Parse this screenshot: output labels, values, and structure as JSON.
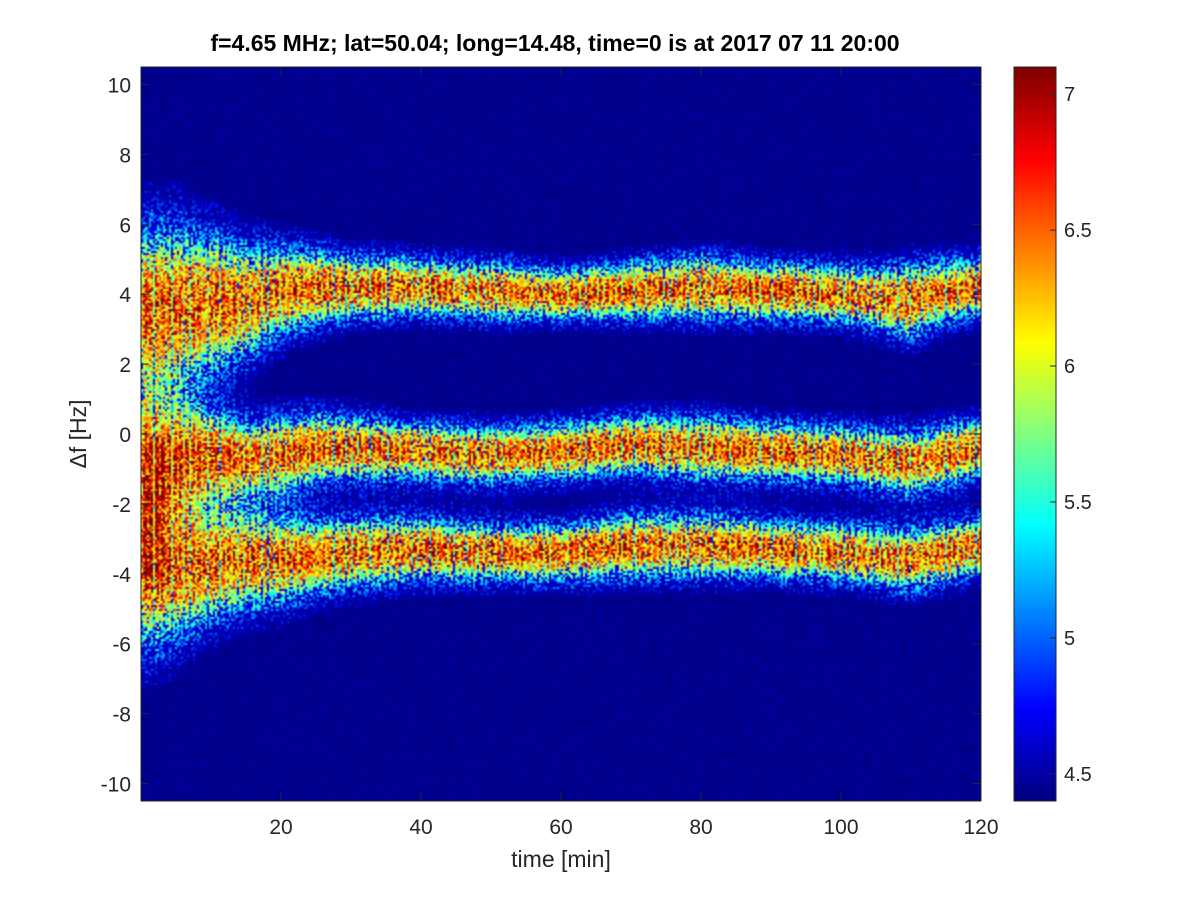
{
  "chart_data": {
    "type": "heatmap",
    "title": "f=4.65 MHz;  lat=50.04; long=14.48, time=0 is at 2017 07 11 20:00",
    "xlabel": "time [min]",
    "ylabel": "Δf [Hz]",
    "xlim": [
      0,
      120
    ],
    "ylim": [
      -10.5,
      10.5
    ],
    "x_ticks": [
      {
        "value": 20,
        "label": "20"
      },
      {
        "value": 40,
        "label": "40"
      },
      {
        "value": 60,
        "label": "60"
      },
      {
        "value": 80,
        "label": "80"
      },
      {
        "value": 100,
        "label": "100"
      },
      {
        "value": 120,
        "label": "120"
      }
    ],
    "y_ticks": [
      {
        "value": 10,
        "label": "10"
      },
      {
        "value": 8,
        "label": "8"
      },
      {
        "value": 6,
        "label": "6"
      },
      {
        "value": 4,
        "label": "4"
      },
      {
        "value": 2,
        "label": "2"
      },
      {
        "value": 0,
        "label": "0"
      },
      {
        "value": -2,
        "label": "-2"
      },
      {
        "value": -4,
        "label": "-4"
      },
      {
        "value": -6,
        "label": "-6"
      },
      {
        "value": -8,
        "label": "-8"
      },
      {
        "value": -10,
        "label": "-10"
      }
    ],
    "colorbar": {
      "colormap": "jet",
      "range": [
        4.4,
        7.1
      ],
      "ticks": [
        {
          "value": 4.5,
          "label": "4.5"
        },
        {
          "value": 5,
          "label": "5"
        },
        {
          "value": 5.5,
          "label": "5.5"
        },
        {
          "value": 6,
          "label": "6"
        },
        {
          "value": 6.5,
          "label": "6.5"
        },
        {
          "value": 7,
          "label": "7"
        }
      ]
    },
    "traces": [
      {
        "time": [
          0,
          5,
          10,
          15,
          20,
          25,
          30,
          40,
          50,
          60,
          70,
          80,
          90,
          100,
          105,
          110,
          115,
          120
        ],
        "df": [
          3.6,
          3.6,
          3.7,
          3.8,
          4.1,
          4.2,
          4.2,
          4.2,
          4.1,
          4.0,
          4.1,
          4.2,
          4.1,
          4.0,
          3.9,
          3.8,
          4.1,
          4.2
        ],
        "spread": [
          1.3,
          1.3,
          1.1,
          0.9,
          0.7,
          0.6,
          0.5,
          0.45,
          0.45,
          0.4,
          0.45,
          0.5,
          0.45,
          0.45,
          0.5,
          0.6,
          0.5,
          0.45
        ]
      },
      {
        "time": [
          0,
          5,
          10,
          15,
          20,
          25,
          30,
          40,
          50,
          60,
          70,
          80,
          90,
          100,
          110,
          115,
          120
        ],
        "df": [
          -1.0,
          -0.7,
          -0.6,
          -0.7,
          -0.6,
          -0.4,
          -0.4,
          -0.5,
          -0.6,
          -0.5,
          -0.3,
          -0.4,
          -0.5,
          -0.6,
          -0.8,
          -0.6,
          -0.4
        ],
        "spread": [
          1.2,
          0.9,
          0.7,
          0.6,
          0.6,
          0.55,
          0.5,
          0.45,
          0.45,
          0.45,
          0.45,
          0.5,
          0.45,
          0.45,
          0.5,
          0.5,
          0.45
        ]
      },
      {
        "time": [
          0,
          5,
          10,
          15,
          20,
          25,
          30,
          40,
          50,
          60,
          70,
          80,
          90,
          100,
          110,
          120
        ],
        "df": [
          -3.8,
          -3.9,
          -3.7,
          -3.6,
          -3.6,
          -3.5,
          -3.4,
          -3.3,
          -3.4,
          -3.4,
          -3.2,
          -3.2,
          -3.3,
          -3.4,
          -3.6,
          -3.2
        ],
        "spread": [
          1.3,
          1.1,
          0.9,
          0.8,
          0.7,
          0.6,
          0.55,
          0.5,
          0.45,
          0.45,
          0.5,
          0.5,
          0.45,
          0.45,
          0.5,
          0.45
        ]
      }
    ]
  }
}
